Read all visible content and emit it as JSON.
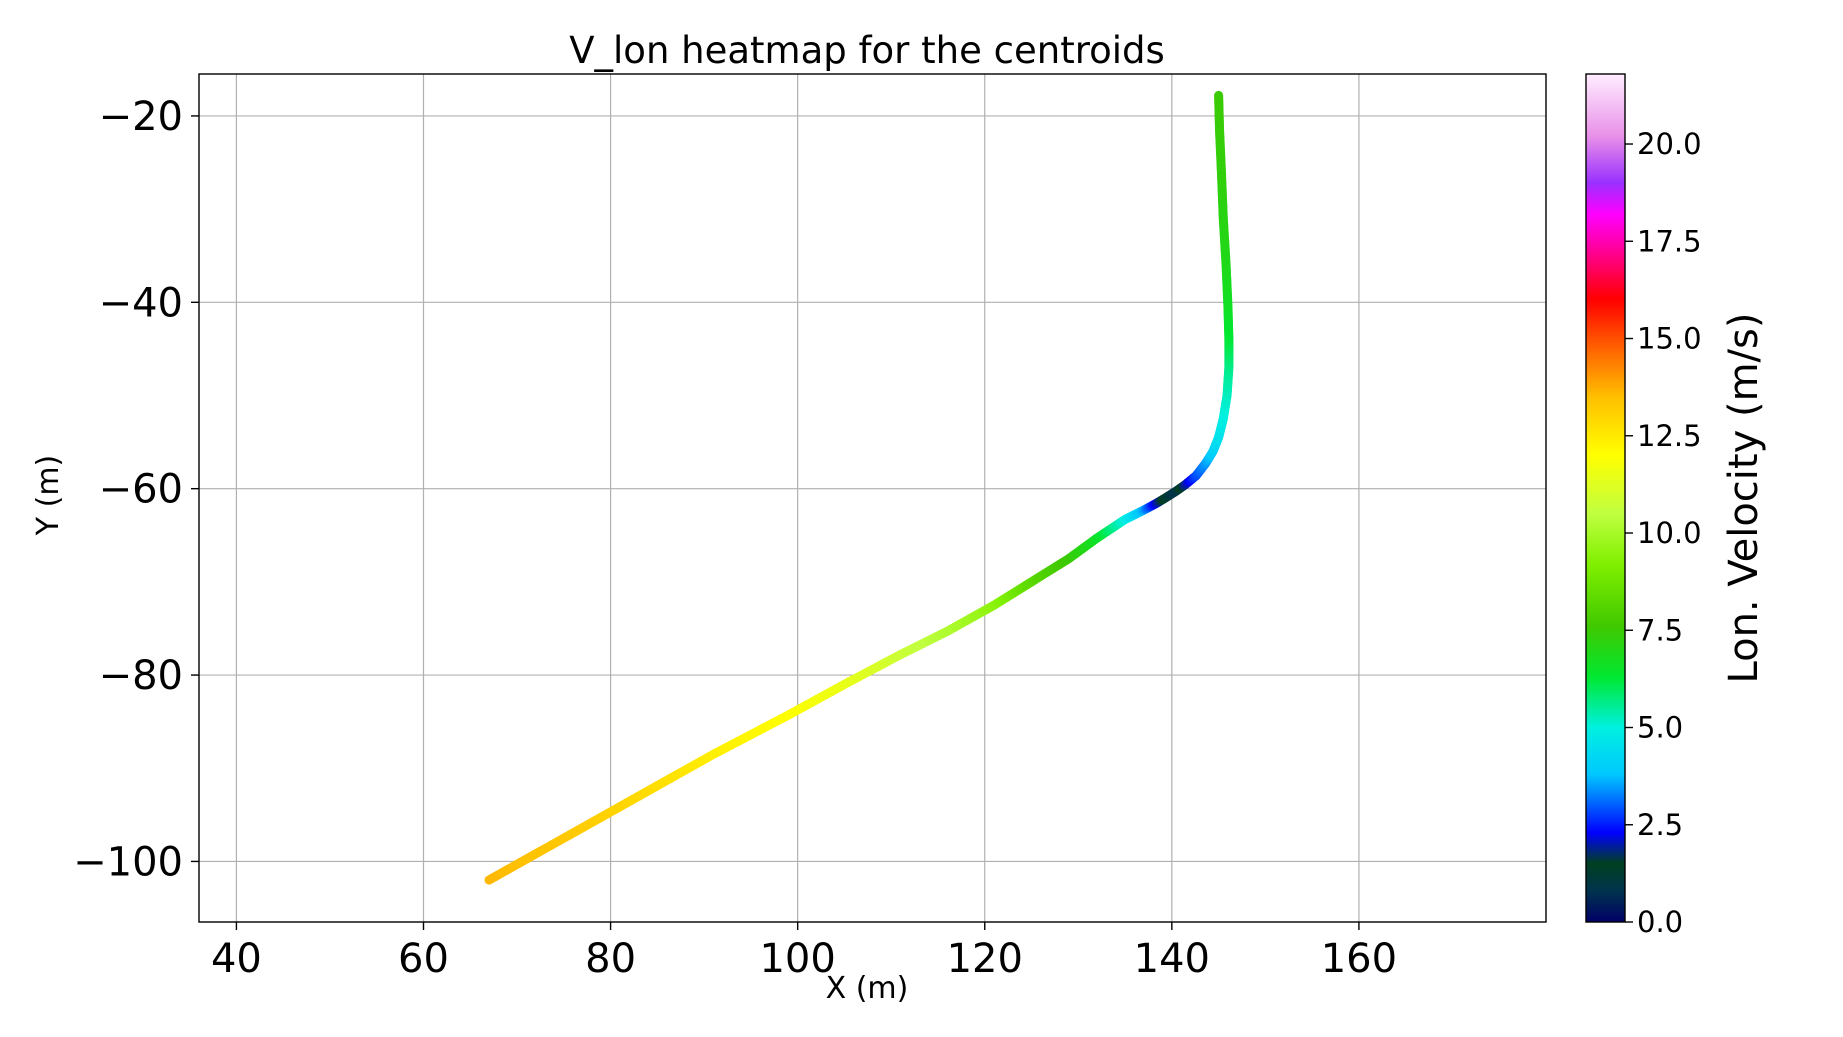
{
  "chart_data": {
    "type": "line",
    "title": "V_lon heatmap for the centroids",
    "xlabel": "X (m)",
    "ylabel": "Y (m)",
    "xlim": [
      36,
      180
    ],
    "ylim": [
      -106.5,
      -15.5
    ],
    "xticks": [
      40,
      60,
      80,
      100,
      120,
      140,
      160
    ],
    "yticks": [
      -20,
      -40,
      -60,
      -80,
      -100
    ],
    "xtick_labels": [
      "40",
      "60",
      "80",
      "100",
      "120",
      "140",
      "160"
    ],
    "ytick_labels": [
      "−20",
      "−40",
      "−60",
      "−80",
      "−100"
    ],
    "grid": true,
    "colorbar": {
      "label": "Lon. Velocity (m/s)",
      "range": [
        0,
        21.8
      ],
      "ticks": [
        0.0,
        2.5,
        5.0,
        7.5,
        10.0,
        12.5,
        15.0,
        17.5,
        20.0
      ],
      "tick_labels": [
        "0.0",
        "2.5",
        "5.0",
        "7.5",
        "10.0",
        "12.5",
        "15.0",
        "17.5",
        "20.0"
      ],
      "colormap": [
        {
          "v": 0.0,
          "color": "#000066"
        },
        {
          "v": 0.8,
          "color": "#00334d"
        },
        {
          "v": 1.5,
          "color": "#004020"
        },
        {
          "v": 2.3,
          "color": "#0000ff"
        },
        {
          "v": 3.8,
          "color": "#00c8ff"
        },
        {
          "v": 5.0,
          "color": "#00f0e0"
        },
        {
          "v": 6.3,
          "color": "#00e830"
        },
        {
          "v": 7.6,
          "color": "#40c800"
        },
        {
          "v": 9.2,
          "color": "#80f000"
        },
        {
          "v": 10.5,
          "color": "#c0ff40"
        },
        {
          "v": 12.0,
          "color": "#ffff00"
        },
        {
          "v": 13.5,
          "color": "#ffbf00"
        },
        {
          "v": 15.2,
          "color": "#ff4000"
        },
        {
          "v": 16.0,
          "color": "#ff0000"
        },
        {
          "v": 17.2,
          "color": "#ff0090"
        },
        {
          "v": 18.2,
          "color": "#ff00ff"
        },
        {
          "v": 19.0,
          "color": "#9a30ff"
        },
        {
          "v": 20.2,
          "color": "#e890e8"
        },
        {
          "v": 21.8,
          "color": "#ffeeff"
        }
      ]
    },
    "series": [
      {
        "points": [
          {
            "x": 67.0,
            "y": -102.0,
            "v": 13.6
          },
          {
            "x": 75.0,
            "y": -97.5,
            "v": 13.3
          },
          {
            "x": 83.0,
            "y": -93.0,
            "v": 12.9
          },
          {
            "x": 91.0,
            "y": -88.5,
            "v": 12.4
          },
          {
            "x": 99.0,
            "y": -84.3,
            "v": 12.0
          },
          {
            "x": 105.0,
            "y": -81.0,
            "v": 11.5
          },
          {
            "x": 111.0,
            "y": -77.8,
            "v": 10.8
          },
          {
            "x": 116.0,
            "y": -75.3,
            "v": 10.2
          },
          {
            "x": 121.0,
            "y": -72.5,
            "v": 9.5
          },
          {
            "x": 125.0,
            "y": -70.0,
            "v": 8.3
          },
          {
            "x": 129.0,
            "y": -67.5,
            "v": 7.5
          },
          {
            "x": 132.0,
            "y": -65.3,
            "v": 6.6
          },
          {
            "x": 135.0,
            "y": -63.3,
            "v": 5.0
          },
          {
            "x": 137.0,
            "y": -62.3,
            "v": 3.6
          },
          {
            "x": 138.3,
            "y": -61.6,
            "v": 2.2
          },
          {
            "x": 139.3,
            "y": -61.0,
            "v": 1.3
          },
          {
            "x": 140.4,
            "y": -60.3,
            "v": 0.8
          },
          {
            "x": 141.4,
            "y": -59.6,
            "v": 1.8
          },
          {
            "x": 142.6,
            "y": -58.6,
            "v": 2.8
          },
          {
            "x": 143.6,
            "y": -57.3,
            "v": 3.4
          },
          {
            "x": 144.4,
            "y": -56.0,
            "v": 4.0
          },
          {
            "x": 145.0,
            "y": -54.5,
            "v": 4.5
          },
          {
            "x": 145.5,
            "y": -52.5,
            "v": 4.9
          },
          {
            "x": 145.9,
            "y": -50.0,
            "v": 5.2
          },
          {
            "x": 146.1,
            "y": -47.0,
            "v": 5.6
          },
          {
            "x": 146.1,
            "y": -44.0,
            "v": 6.2
          },
          {
            "x": 146.0,
            "y": -40.5,
            "v": 6.6
          },
          {
            "x": 145.8,
            "y": -36.0,
            "v": 6.9
          },
          {
            "x": 145.5,
            "y": -31.0,
            "v": 7.1
          },
          {
            "x": 145.3,
            "y": -26.0,
            "v": 7.3
          },
          {
            "x": 145.1,
            "y": -21.5,
            "v": 7.4
          },
          {
            "x": 145.0,
            "y": -17.8,
            "v": 7.5
          }
        ]
      }
    ]
  }
}
